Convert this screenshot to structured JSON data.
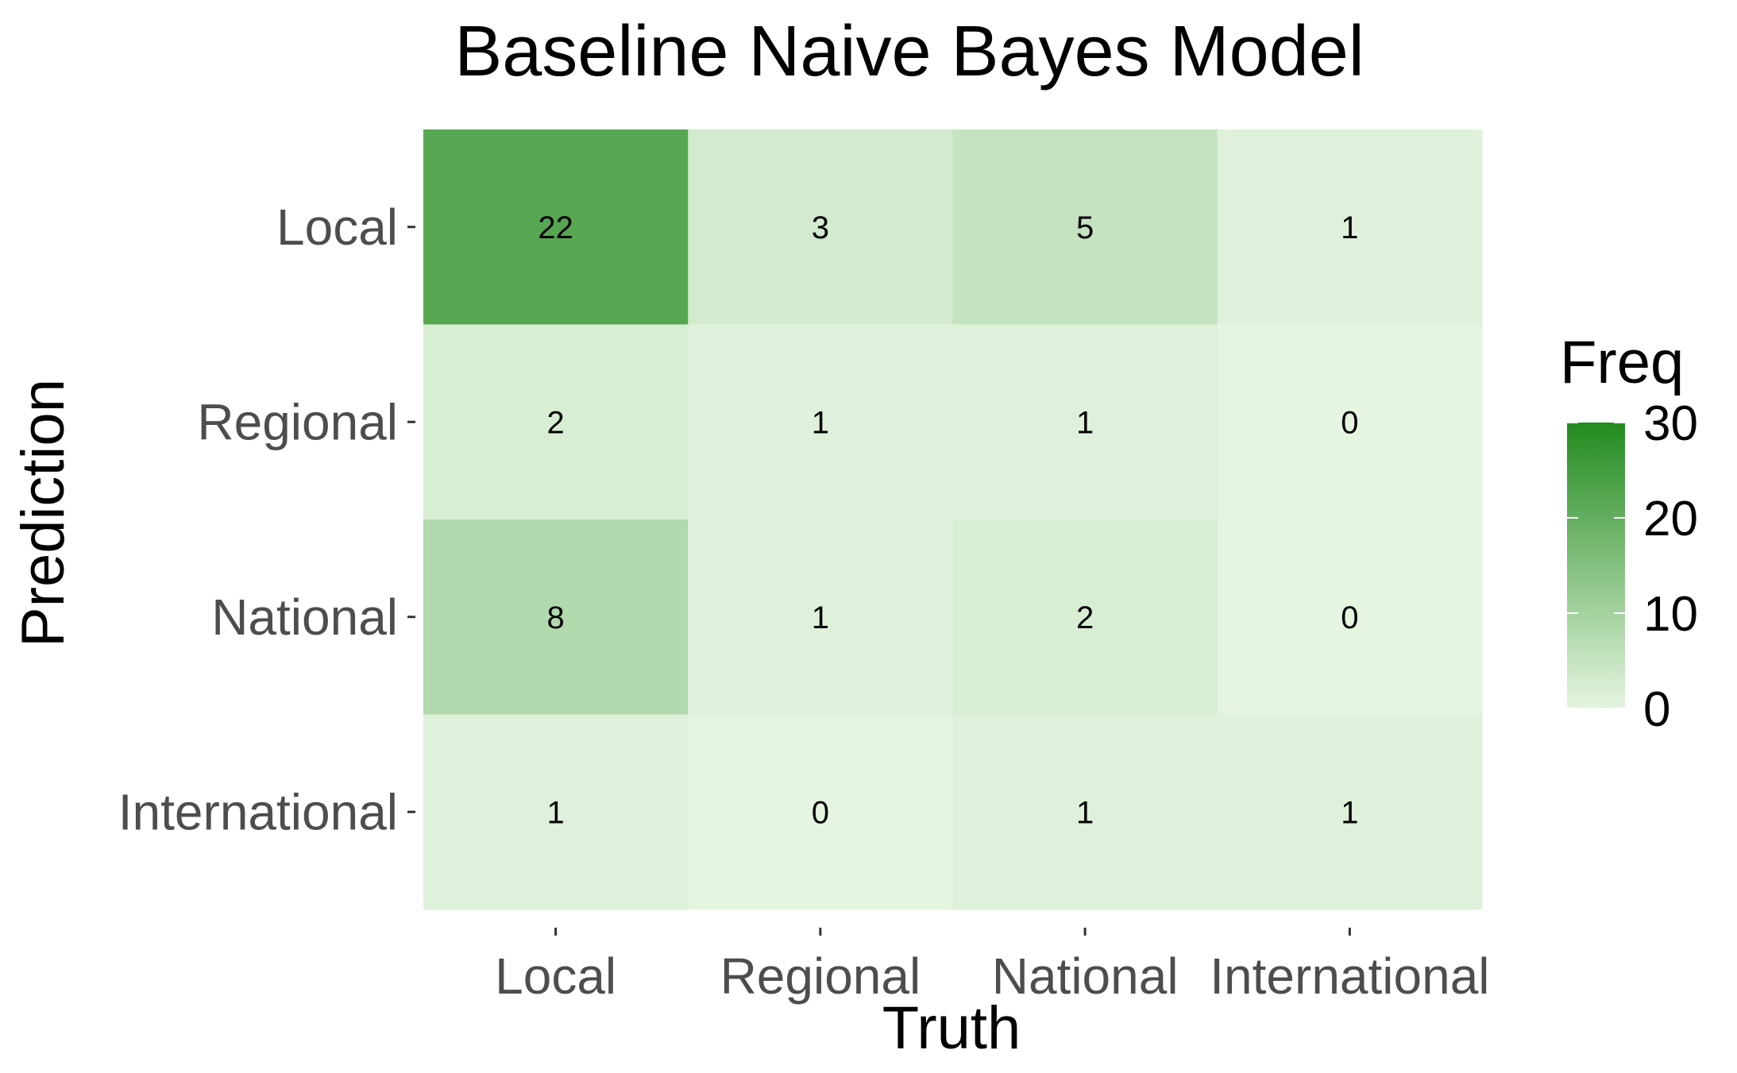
{
  "chart_data": {
    "type": "heatmap",
    "title": "Baseline Naive Bayes Model",
    "xlabel": "Truth",
    "ylabel": "Prediction",
    "x_categories": [
      "Local",
      "Regional",
      "National",
      "International"
    ],
    "y_categories": [
      "Local",
      "Regional",
      "National",
      "International"
    ],
    "values": [
      [
        22,
        3,
        5,
        1
      ],
      [
        2,
        1,
        1,
        0
      ],
      [
        8,
        1,
        2,
        0
      ],
      [
        1,
        0,
        1,
        1
      ]
    ],
    "legend": {
      "title": "Freq",
      "range": [
        0,
        30
      ],
      "ticks": [
        0,
        10,
        20,
        30
      ],
      "low_color": "#e5f5e0",
      "high_color": "#238b1f"
    },
    "grid": false,
    "legend_position": "right"
  }
}
